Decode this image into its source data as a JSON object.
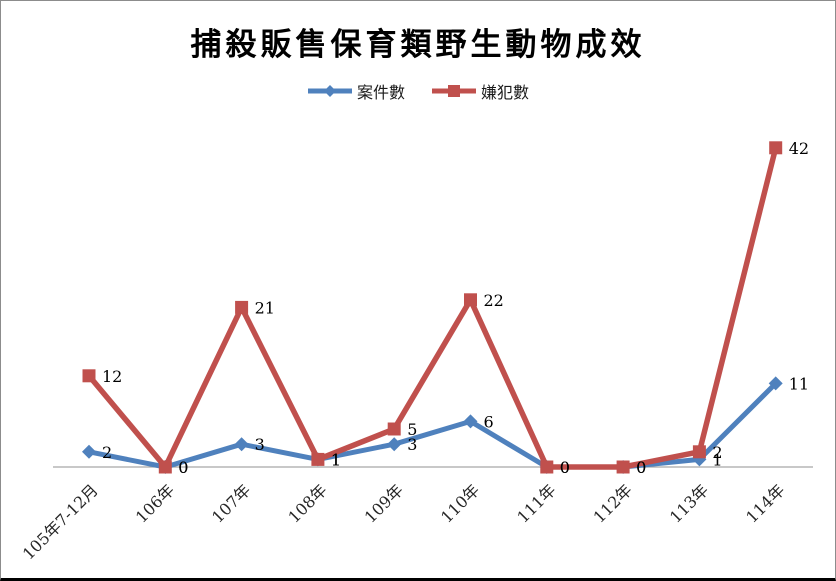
{
  "title": "捕殺販售保育類野生動物成效",
  "chart_data": {
    "type": "line",
    "title": "捕殺販售保育類野生動物成效",
    "categories": [
      "105年7-12月",
      "106年",
      "107年",
      "108年",
      "109年",
      "110年",
      "111年",
      "112年",
      "113年",
      "114年"
    ],
    "series": [
      {
        "name": "案件數",
        "color": "#4F81BD",
        "marker": "diamond",
        "values": [
          2,
          0,
          3,
          1,
          3,
          6,
          0,
          0,
          1,
          11
        ]
      },
      {
        "name": "嫌犯數",
        "color": "#C0504D",
        "marker": "square",
        "values": [
          12,
          0,
          21,
          1,
          5,
          22,
          0,
          0,
          2,
          42
        ]
      }
    ],
    "xlabel": "",
    "ylabel": "",
    "ylim": [
      0,
      44
    ],
    "grid": false,
    "y_axis_visible": false,
    "legend_position": "top",
    "data_labels": "right",
    "axis_color": "#A6A6A6",
    "data_label_color": "#000000",
    "tick_label_color": "#262626",
    "background": "#FFFFFF"
  }
}
